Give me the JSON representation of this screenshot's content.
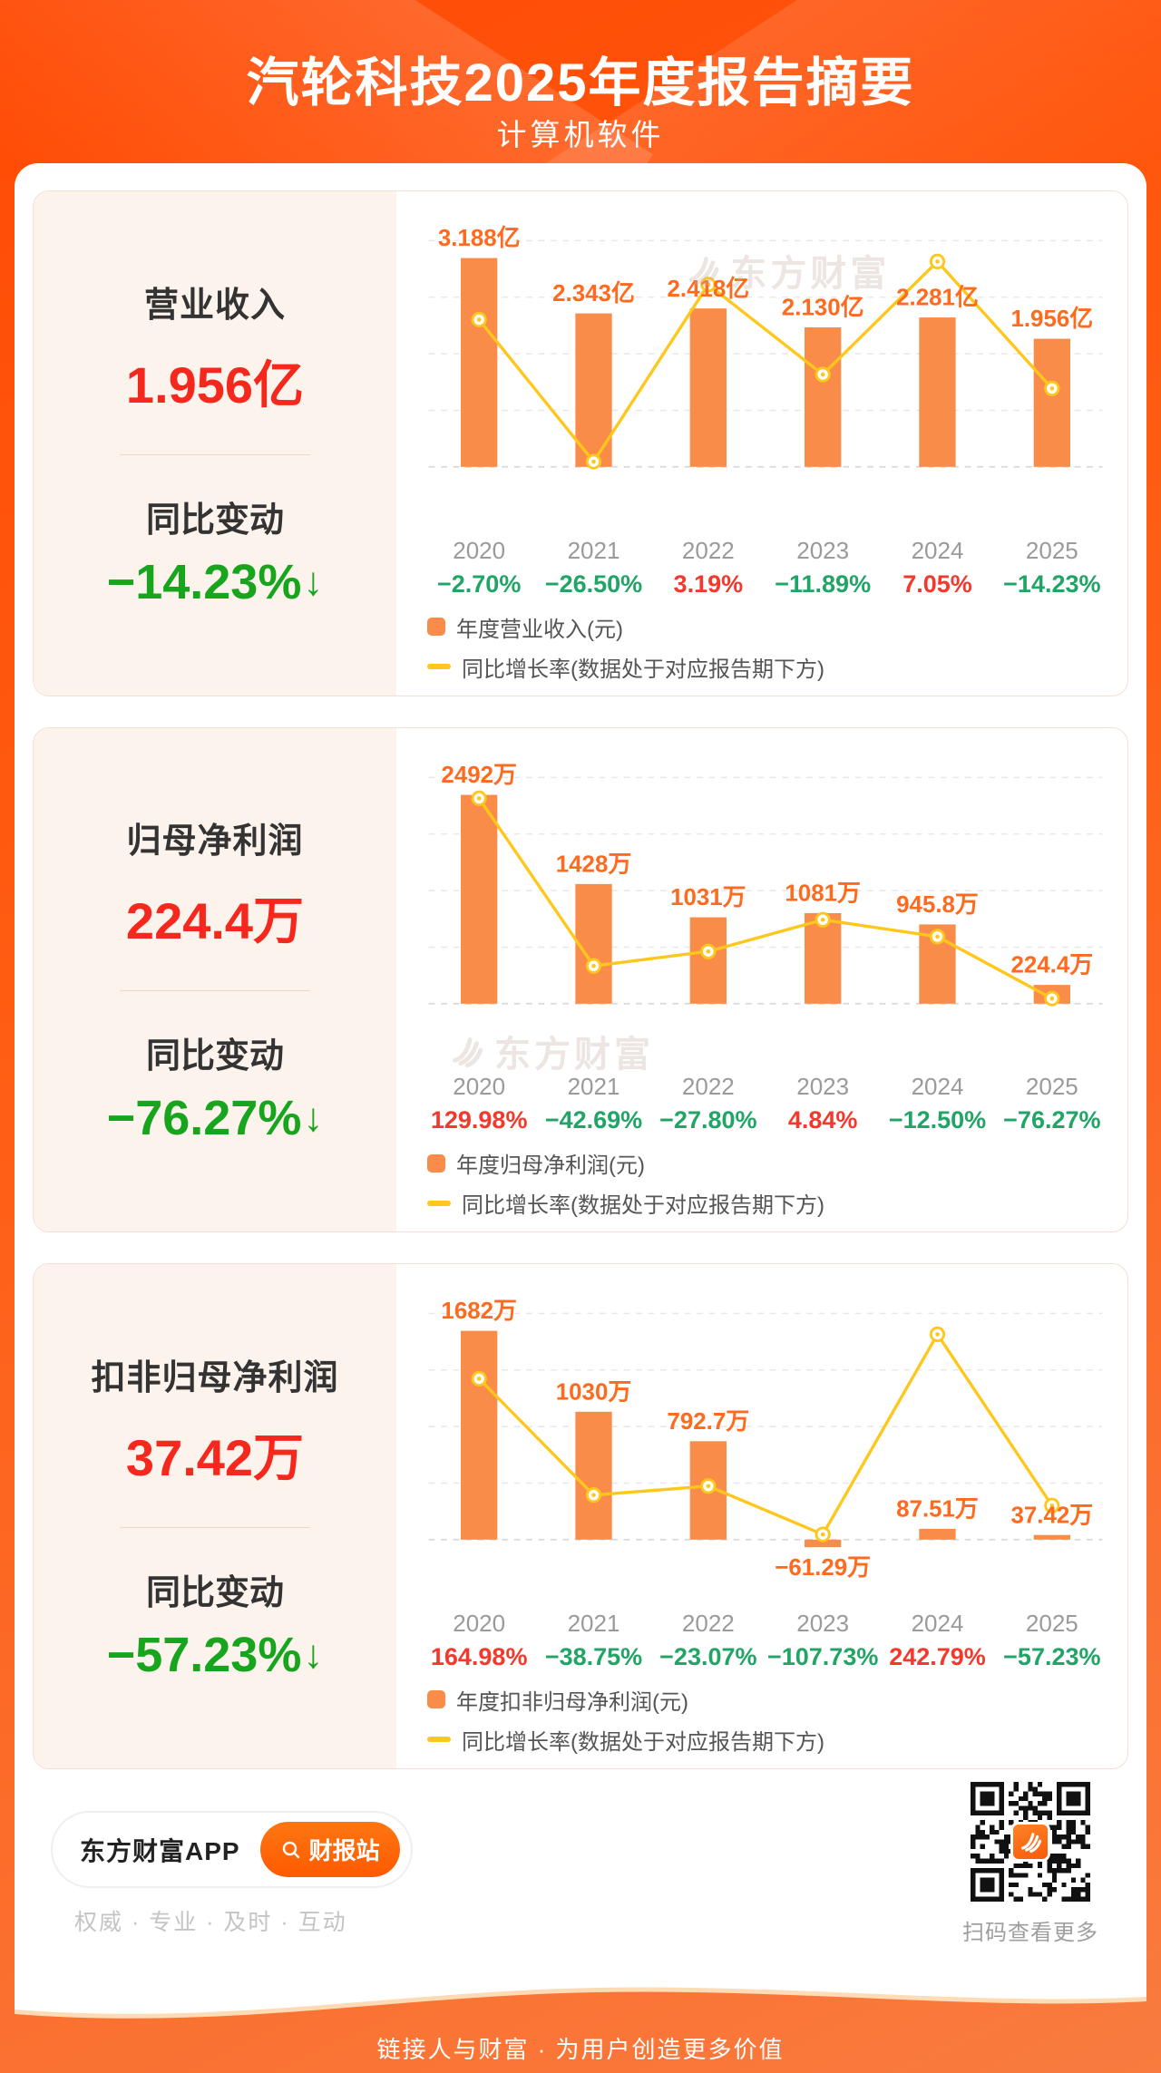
{
  "header": {
    "title": "汽轮科技2025年度报告摘要",
    "subtitle": "计算机软件"
  },
  "watermark": {
    "text": "东方财富"
  },
  "sections": [
    {
      "metric_label": "营业收入",
      "metric_value": "1.956亿",
      "change_label": "同比变动",
      "change_value": "−14.23%",
      "change_arrow": "↓",
      "chart_data": {
        "type": "bar+line",
        "categories": [
          "2020",
          "2021",
          "2022",
          "2023",
          "2024",
          "2025"
        ],
        "series": [
          {
            "name": "年度营业收入(元)",
            "type": "bar",
            "unit": "亿",
            "values": [
              3.188,
              2.343,
              2.418,
              2.13,
              2.281,
              1.956
            ],
            "value_labels": [
              "3.188亿",
              "2.343亿",
              "2.418亿",
              "2.130亿",
              "2.281亿",
              "1.956亿"
            ]
          },
          {
            "name": "同比增长率(数据处于对应报告期下方)",
            "type": "line",
            "unit": "%",
            "values": [
              -2.7,
              -26.5,
              3.19,
              -11.89,
              7.05,
              -14.23
            ],
            "value_labels": [
              "−2.70%",
              "−26.50%",
              "3.19%",
              "−11.89%",
              "7.05%",
              "−14.23%"
            ]
          }
        ],
        "grid": true,
        "legend_position": "bottom"
      }
    },
    {
      "metric_label": "归母净利润",
      "metric_value": "224.4万",
      "change_label": "同比变动",
      "change_value": "−76.27%",
      "change_arrow": "↓",
      "chart_data": {
        "type": "bar+line",
        "categories": [
          "2020",
          "2021",
          "2022",
          "2023",
          "2024",
          "2025"
        ],
        "series": [
          {
            "name": "年度归母净利润(元)",
            "type": "bar",
            "unit": "万",
            "values": [
              2492,
              1428,
              1031,
              1081,
              945.8,
              224.4
            ],
            "value_labels": [
              "2492万",
              "1428万",
              "1031万",
              "1081万",
              "945.8万",
              "224.4万"
            ]
          },
          {
            "name": "同比增长率(数据处于对应报告期下方)",
            "type": "line",
            "unit": "%",
            "values": [
              129.98,
              -42.69,
              -27.8,
              4.84,
              -12.5,
              -76.27
            ],
            "value_labels": [
              "129.98%",
              "−42.69%",
              "−27.80%",
              "4.84%",
              "−12.50%",
              "−76.27%"
            ]
          }
        ],
        "grid": true,
        "legend_position": "bottom"
      }
    },
    {
      "metric_label": "扣非归母净利润",
      "metric_value": "37.42万",
      "change_label": "同比变动",
      "change_value": "−57.23%",
      "change_arrow": "↓",
      "chart_data": {
        "type": "bar+line",
        "categories": [
          "2020",
          "2021",
          "2022",
          "2023",
          "2024",
          "2025"
        ],
        "series": [
          {
            "name": "年度扣非归母净利润(元)",
            "type": "bar",
            "unit": "万",
            "values": [
              1682,
              1030,
              792.7,
              -61.29,
              87.51,
              37.42
            ],
            "value_labels": [
              "1682万",
              "1030万",
              "792.7万",
              "−61.29万",
              "87.51万",
              "37.42万"
            ]
          },
          {
            "name": "同比增长率(数据处于对应报告期下方)",
            "type": "line",
            "unit": "%",
            "values": [
              164.98,
              -38.75,
              -23.07,
              -107.73,
              242.79,
              -57.23
            ],
            "value_labels": [
              "164.98%",
              "−38.75%",
              "−23.07%",
              "−107.73%",
              "242.79%",
              "−57.23%"
            ]
          }
        ],
        "grid": true,
        "legend_position": "bottom"
      }
    }
  ],
  "bottom": {
    "app_name": "东方财富APP",
    "report_button": "财报站",
    "tagline": "权威 · 专业 · 及时 · 互动",
    "qr_caption": "扫码查看更多"
  },
  "footer": {
    "slogan": "链接人与财富 · 为用户创造更多价值"
  },
  "colors": {
    "background": "#FF5A0F",
    "bar": "#F98C48",
    "line": "#FFC71C",
    "bar_label": "#FF6A1F",
    "positive": "#F5382C",
    "negative": "#21A567",
    "metric_value": "#F5281E",
    "change_negative": "#17A51D",
    "grid": "#E8E8E8"
  }
}
